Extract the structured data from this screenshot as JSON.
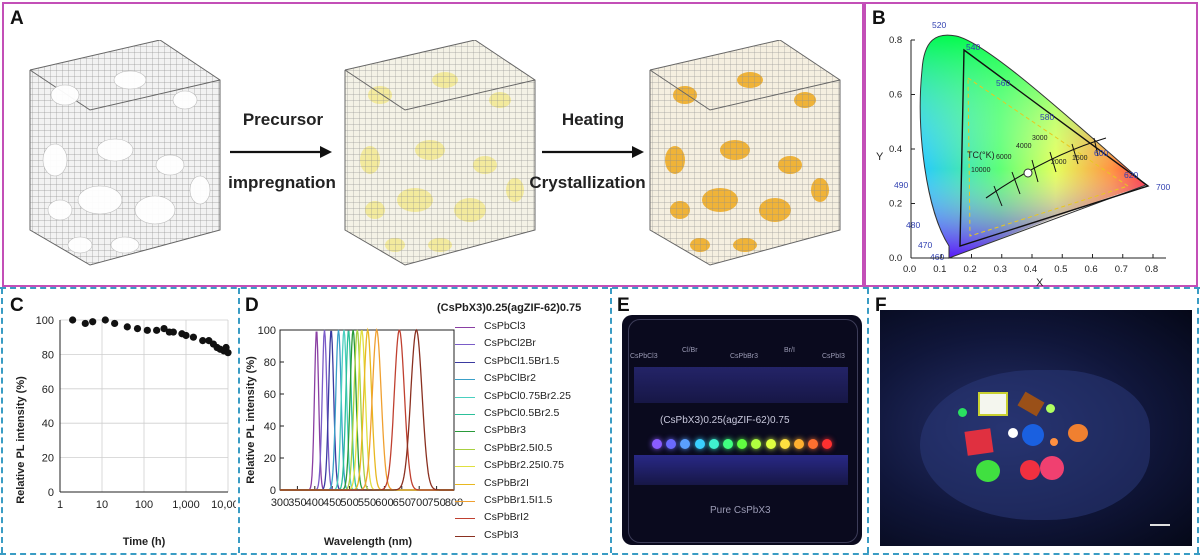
{
  "panels": {
    "a": {
      "letter": "A",
      "arrow1_top": "Precursor",
      "arrow1_bottom": "impregnation",
      "arrow2_top": "Heating",
      "arrow2_bottom": "Crystallization"
    },
    "b": {
      "letter": "B",
      "xlabel": "X",
      "ylabel": "Y",
      "xticks": [
        "0.0",
        "0.1",
        "0.2",
        "0.3",
        "0.4",
        "0.5",
        "0.6",
        "0.7",
        "0.8"
      ],
      "yticks": [
        "0.0",
        "0.2",
        "0.4",
        "0.6",
        "0.8"
      ],
      "wavelengths": [
        "520",
        "540",
        "560",
        "580",
        "600",
        "620",
        "700",
        "490",
        "480",
        "470",
        "460"
      ],
      "tc_label": "TC(°K)",
      "tc_values": [
        "10000",
        "6000",
        "4000",
        "3000",
        "2000",
        "1500"
      ]
    },
    "c": {
      "letter": "C",
      "xlabel": "Time (h)",
      "ylabel": "Relative PL intensity (%)",
      "xticks": [
        "1",
        "10",
        "100",
        "1,000",
        "10,000"
      ],
      "yticks": [
        "0",
        "20",
        "40",
        "60",
        "80",
        "100"
      ]
    },
    "d": {
      "letter": "D",
      "legend_title": "(CsPbX3)0.25(agZIF-62)0.75",
      "xlabel": "Wavelength (nm)",
      "ylabel": "Relative PL intensity (%)",
      "xticks": [
        "300",
        "350",
        "400",
        "450",
        "500",
        "550",
        "600",
        "650",
        "700",
        "750",
        "800"
      ],
      "yticks": [
        "0",
        "20",
        "40",
        "60",
        "80",
        "100"
      ]
    },
    "e": {
      "letter": "E",
      "top_labels": [
        "CsPbCl3",
        "Cl/Br",
        "CsPbBr3",
        "Br/I",
        "CsPbI3"
      ],
      "middle_label": "(CsPbX3)0.25(agZIF-62)0.75",
      "bottom_label": "Pure CsPbX3"
    },
    "f": {
      "letter": "F"
    }
  },
  "chart_data": [
    {
      "type": "scatter",
      "panel": "C",
      "xlabel": "Time (h)",
      "ylabel": "Relative PL intensity (%)",
      "x_scale": "log",
      "xlim": [
        1,
        10000
      ],
      "ylim": [
        0,
        100
      ],
      "grid": true,
      "x": [
        2,
        4,
        6,
        12,
        20,
        40,
        70,
        120,
        200,
        300,
        400,
        500,
        800,
        1000,
        1500,
        2500,
        3500,
        4500,
        5500,
        6500,
        8000,
        9000,
        10000
      ],
      "y": [
        100,
        98,
        99,
        100,
        98,
        96,
        95,
        94,
        94,
        95,
        93,
        93,
        92,
        91,
        90,
        88,
        88,
        86,
        84,
        83,
        82,
        84,
        81
      ]
    },
    {
      "type": "line",
      "panel": "D",
      "xlabel": "Wavelength (nm)",
      "ylabel": "Relative PL intensity (%)",
      "xlim": [
        300,
        800
      ],
      "ylim": [
        0,
        100
      ],
      "legend": "right",
      "series": [
        {
          "name": "CsPbCl3",
          "peak": 405,
          "fwhm": 14,
          "color": "#8a3fa3"
        },
        {
          "name": "CsPbCl2Br",
          "peak": 428,
          "fwhm": 16,
          "color": "#7a5cc8"
        },
        {
          "name": "CsPbCl1.5Br1.5",
          "peak": 447,
          "fwhm": 17,
          "color": "#3a3aa0"
        },
        {
          "name": "CsPbClBr2",
          "peak": 468,
          "fwhm": 18,
          "color": "#3aa0c8"
        },
        {
          "name": "CsPbCl0.75Br2.25",
          "peak": 484,
          "fwhm": 18,
          "color": "#4ad0c0"
        },
        {
          "name": "CsPbCl0.5Br2.5",
          "peak": 497,
          "fwhm": 18,
          "color": "#2cc09a"
        },
        {
          "name": "CsPbBr3",
          "peak": 510,
          "fwhm": 20,
          "color": "#2a9a3a"
        },
        {
          "name": "CsPbBr2.5I0.5",
          "peak": 522,
          "fwhm": 22,
          "color": "#a8d040"
        },
        {
          "name": "CsPbBr2.25I0.75",
          "peak": 535,
          "fwhm": 24,
          "color": "#e0e040"
        },
        {
          "name": "CsPbBr2I",
          "peak": 552,
          "fwhm": 26,
          "color": "#e8b820"
        },
        {
          "name": "CsPbBr1.5I1.5",
          "peak": 578,
          "fwhm": 30,
          "color": "#f0a030"
        },
        {
          "name": "CsPbBrI2",
          "peak": 643,
          "fwhm": 34,
          "color": "#c04030"
        },
        {
          "name": "CsPbI3",
          "peak": 692,
          "fwhm": 38,
          "color": "#8a3020"
        }
      ]
    }
  ]
}
